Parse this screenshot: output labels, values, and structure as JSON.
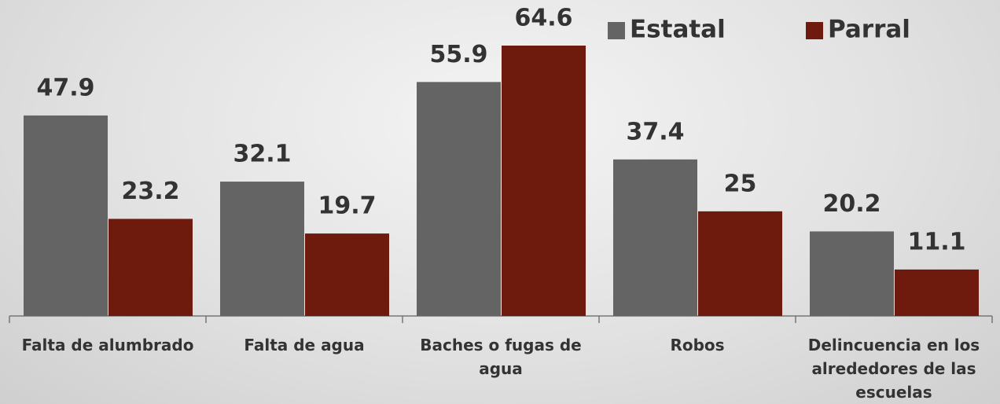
{
  "chart_data": {
    "type": "bar",
    "categories": [
      "Falta de alumbrado",
      "Falta de agua",
      "Baches o fugas de agua",
      "Robos",
      "Delincuencia en los alrededores de las escuelas"
    ],
    "series": [
      {
        "name": "Estatal",
        "color": "#646464",
        "values": [
          47.9,
          32.1,
          55.9,
          37.4,
          20.2
        ]
      },
      {
        "name": "Parral",
        "color": "#6e1a0c",
        "values": [
          23.2,
          19.7,
          64.6,
          25,
          11.1
        ]
      }
    ]
  }
}
